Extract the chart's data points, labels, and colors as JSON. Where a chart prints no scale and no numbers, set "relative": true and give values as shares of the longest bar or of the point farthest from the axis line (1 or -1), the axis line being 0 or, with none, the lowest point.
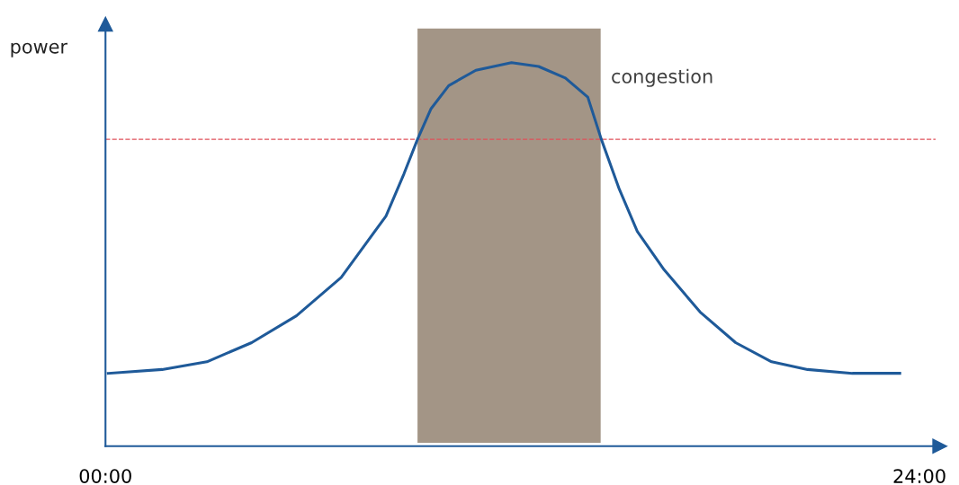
{
  "chart_data": {
    "type": "line",
    "ylabel": "power",
    "relative": true,
    "xlim": [
      0,
      24.6
    ],
    "xticks": [
      {
        "value": 0,
        "label": "00:00"
      },
      {
        "value": 24,
        "label": "24:00"
      }
    ],
    "grid": false,
    "legend": false,
    "marker": "none",
    "line_style": "solid",
    "series": [
      {
        "color": "#1f5a99",
        "x": [
          0.08,
          1.67,
          2.99,
          4.31,
          5.63,
          6.95,
          8.27,
          8.8,
          9.2,
          9.6,
          10.12,
          10.92,
          11.97,
          12.77,
          13.56,
          14.22,
          14.62,
          15.15,
          15.68,
          16.47,
          17.53,
          18.58,
          19.64,
          20.7,
          22.02,
          23.42
        ],
        "values": [
          0.19,
          0.2,
          0.22,
          0.27,
          0.34,
          0.44,
          0.6,
          0.71,
          0.8,
          0.88,
          0.94,
          0.98,
          1.0,
          0.99,
          0.96,
          0.91,
          0.8,
          0.67,
          0.56,
          0.46,
          0.35,
          0.27,
          0.22,
          0.2,
          0.19,
          0.19
        ]
      }
    ],
    "ref_lines": [
      {
        "axis": "y",
        "value": 0.8,
        "color": "#e0505a",
        "line_style": "dashed"
      }
    ],
    "bands": [
      {
        "axis": "x",
        "from": 9.2,
        "to": 14.6,
        "label": "congestion",
        "color": "#a39586"
      }
    ]
  }
}
